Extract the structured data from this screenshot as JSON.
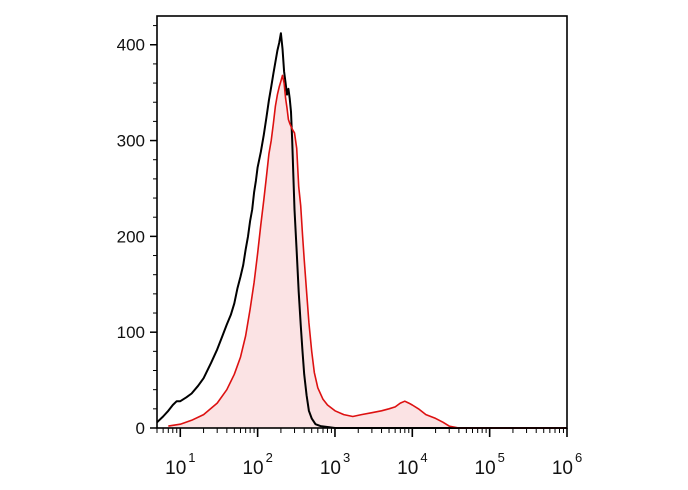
{
  "chart_data": {
    "type": "line",
    "title": "",
    "xlabel": "",
    "ylabel": "",
    "x_scale": "log",
    "xlim": [
      5,
      1000000
    ],
    "ylim": [
      0,
      430
    ],
    "grid": false,
    "legend": "none",
    "x_ticks": [
      {
        "value": 10,
        "base": "10",
        "exp": "1"
      },
      {
        "value": 100,
        "base": "10",
        "exp": "2"
      },
      {
        "value": 1000,
        "base": "10",
        "exp": "3"
      },
      {
        "value": 10000,
        "base": "10",
        "exp": "4"
      },
      {
        "value": 100000,
        "base": "10",
        "exp": "5"
      },
      {
        "value": 1000000,
        "base": "10",
        "exp": "6"
      }
    ],
    "y_ticks": [
      {
        "value": 0,
        "label": "0"
      },
      {
        "value": 100,
        "label": "100"
      },
      {
        "value": 200,
        "label": "200"
      },
      {
        "value": 300,
        "label": "300"
      },
      {
        "value": 400,
        "label": "400"
      }
    ],
    "series": [
      {
        "color": "#000000",
        "fill": null,
        "points": [
          [
            5,
            6
          ],
          [
            6,
            12
          ],
          [
            7,
            18
          ],
          [
            8,
            24
          ],
          [
            9,
            28
          ],
          [
            10,
            28
          ],
          [
            12,
            32
          ],
          [
            14,
            36
          ],
          [
            17,
            44
          ],
          [
            20,
            52
          ],
          [
            25,
            68
          ],
          [
            30,
            82
          ],
          [
            35,
            96
          ],
          [
            40,
            108
          ],
          [
            45,
            118
          ],
          [
            50,
            130
          ],
          [
            55,
            146
          ],
          [
            60,
            158
          ],
          [
            65,
            170
          ],
          [
            70,
            186
          ],
          [
            75,
            200
          ],
          [
            80,
            216
          ],
          [
            85,
            228
          ],
          [
            90,
            246
          ],
          [
            95,
            258
          ],
          [
            100,
            272
          ],
          [
            110,
            288
          ],
          [
            120,
            306
          ],
          [
            130,
            324
          ],
          [
            140,
            342
          ],
          [
            150,
            356
          ],
          [
            160,
            370
          ],
          [
            170,
            382
          ],
          [
            180,
            394
          ],
          [
            190,
            402
          ],
          [
            200,
            412
          ],
          [
            210,
            396
          ],
          [
            220,
            372
          ],
          [
            230,
            360
          ],
          [
            240,
            348
          ],
          [
            250,
            354
          ],
          [
            260,
            344
          ],
          [
            270,
            330
          ],
          [
            280,
            300
          ],
          [
            290,
            262
          ],
          [
            300,
            228
          ],
          [
            320,
            184
          ],
          [
            340,
            142
          ],
          [
            360,
            108
          ],
          [
            380,
            80
          ],
          [
            400,
            56
          ],
          [
            430,
            34
          ],
          [
            460,
            18
          ],
          [
            500,
            10
          ],
          [
            560,
            4
          ],
          [
            650,
            2
          ],
          [
            800,
            1
          ],
          [
            1000,
            0
          ],
          [
            3000,
            0
          ],
          [
            10000,
            0
          ],
          [
            100000,
            0
          ],
          [
            1000000,
            0
          ]
        ]
      },
      {
        "color": "#dd1111",
        "fill": "#fbe3e4",
        "points": [
          [
            7,
            2
          ],
          [
            10,
            4
          ],
          [
            14,
            8
          ],
          [
            20,
            14
          ],
          [
            30,
            26
          ],
          [
            40,
            40
          ],
          [
            50,
            56
          ],
          [
            60,
            74
          ],
          [
            70,
            96
          ],
          [
            80,
            124
          ],
          [
            90,
            152
          ],
          [
            100,
            182
          ],
          [
            110,
            212
          ],
          [
            120,
            238
          ],
          [
            130,
            262
          ],
          [
            140,
            286
          ],
          [
            150,
            300
          ],
          [
            160,
            318
          ],
          [
            170,
            336
          ],
          [
            180,
            348
          ],
          [
            190,
            356
          ],
          [
            200,
            362
          ],
          [
            210,
            368
          ],
          [
            220,
            360
          ],
          [
            230,
            344
          ],
          [
            240,
            334
          ],
          [
            250,
            322
          ],
          [
            260,
            318
          ],
          [
            280,
            312
          ],
          [
            300,
            308
          ],
          [
            320,
            292
          ],
          [
            340,
            252
          ],
          [
            360,
            232
          ],
          [
            380,
            202
          ],
          [
            400,
            176
          ],
          [
            430,
            142
          ],
          [
            460,
            110
          ],
          [
            500,
            80
          ],
          [
            540,
            58
          ],
          [
            600,
            42
          ],
          [
            700,
            30
          ],
          [
            800,
            24
          ],
          [
            1000,
            18
          ],
          [
            1300,
            14
          ],
          [
            1700,
            12
          ],
          [
            2200,
            14
          ],
          [
            3000,
            16
          ],
          [
            4000,
            18
          ],
          [
            5000,
            20
          ],
          [
            6000,
            22
          ],
          [
            7000,
            26
          ],
          [
            8000,
            28
          ],
          [
            9000,
            26
          ],
          [
            10000,
            24
          ],
          [
            12000,
            20
          ],
          [
            15000,
            14
          ],
          [
            20000,
            10
          ],
          [
            25000,
            6
          ],
          [
            30000,
            2
          ],
          [
            40000,
            0
          ],
          [
            100000,
            0
          ],
          [
            1000000,
            0
          ]
        ]
      }
    ]
  }
}
